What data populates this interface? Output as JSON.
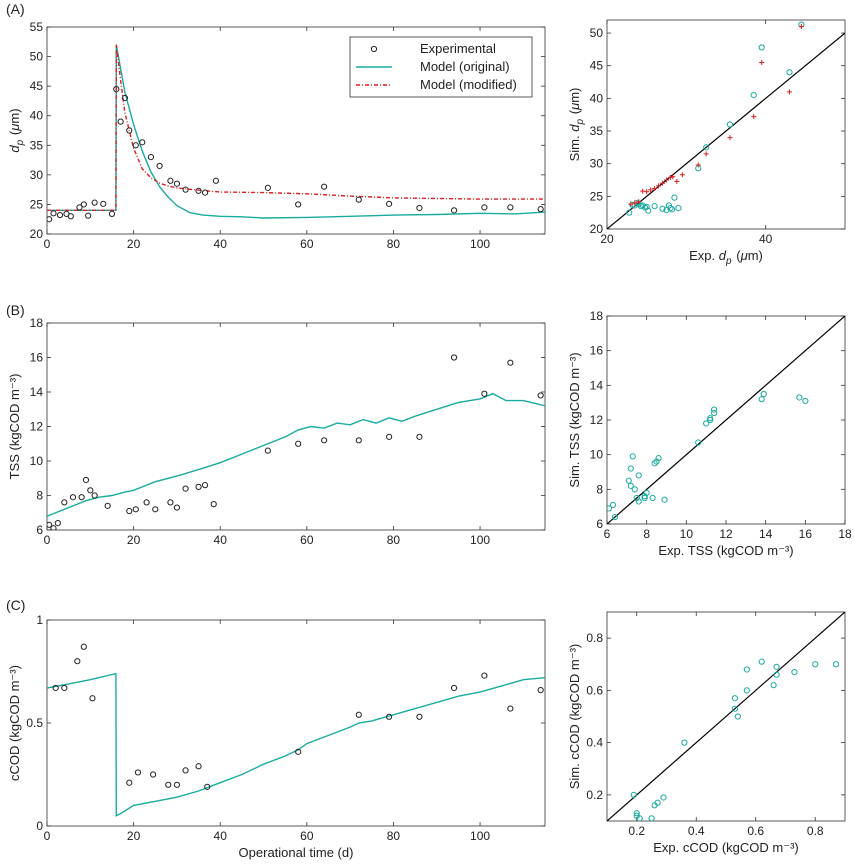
{
  "panel_labels": [
    "(A)",
    "(B)",
    "(C)"
  ],
  "colors": {
    "experimental": "#222222",
    "model_original": "#1aab9f",
    "model_modified": "#dd1f1f",
    "axis": "#333333",
    "diagonal": "#000000"
  },
  "chart_data": [
    {
      "id": "a-time",
      "type": "line",
      "panel": "(A)",
      "ylabel": "d_p (μm)",
      "xlabel": "",
      "xlim": [
        0,
        115
      ],
      "ylim": [
        20,
        55
      ],
      "xticks": [
        0,
        20,
        40,
        60,
        80,
        100
      ],
      "yticks": [
        20,
        25,
        30,
        35,
        40,
        45,
        50,
        55
      ],
      "legend": {
        "position": "top-right",
        "entries": [
          "Experimental",
          "Model (original)",
          "Model (modified)"
        ]
      },
      "series": [
        {
          "name": "Experimental",
          "kind": "scatter",
          "x": [
            0.5,
            1.5,
            3,
            4.5,
            5.5,
            7.5,
            8.5,
            9.5,
            11,
            13,
            15,
            16,
            17,
            18,
            19,
            20.5,
            22,
            24,
            26,
            28.5,
            30,
            32,
            35,
            36.5,
            39,
            51,
            58,
            64,
            72,
            79,
            86,
            94,
            101,
            107,
            114
          ],
          "y": [
            22.5,
            23.5,
            23.2,
            23.4,
            23,
            24.5,
            25,
            23.1,
            25.3,
            25.1,
            23.4,
            44.5,
            39,
            43,
            37.5,
            35,
            35.5,
            33,
            31.5,
            29,
            28.5,
            27.5,
            27.3,
            27,
            29,
            27.8,
            25,
            28,
            25.8,
            25.1,
            24.4,
            24,
            24.5,
            24.5,
            24.2
          ]
        },
        {
          "name": "Model (original)",
          "kind": "line",
          "x": [
            0,
            15.9,
            16,
            18,
            20,
            22,
            24,
            26,
            28,
            30,
            33,
            36,
            40,
            45,
            50,
            60,
            70,
            80,
            90,
            100,
            108,
            115
          ],
          "y": [
            24,
            24,
            52,
            44,
            38.5,
            34,
            30.5,
            28,
            26.2,
            24.8,
            23.6,
            23.2,
            23,
            22.9,
            22.7,
            22.8,
            23,
            23.2,
            23.3,
            23.5,
            23.4,
            23.7
          ]
        },
        {
          "name": "Model (modified)",
          "kind": "line",
          "x": [
            0,
            15.9,
            16,
            17,
            18,
            20,
            22,
            24,
            26,
            28,
            30,
            35,
            40,
            50,
            60,
            70,
            80,
            90,
            100,
            115
          ],
          "y": [
            24,
            24,
            52,
            46,
            40.5,
            34.5,
            31,
            29.5,
            28.6,
            28.1,
            27.8,
            27.4,
            27.1,
            27,
            26.8,
            26.4,
            26.1,
            26,
            25.9,
            25.9
          ]
        }
      ]
    },
    {
      "id": "a-parity",
      "type": "scatter",
      "panel": "(A)",
      "xlabel": "Exp. d_p (μm)",
      "ylabel": "Sim. d_p (μm)",
      "xlim": [
        20,
        50
      ],
      "ylim": [
        20,
        52
      ],
      "xticks": [
        20,
        40
      ],
      "yticks": [
        20,
        25,
        30,
        35,
        40,
        45,
        50
      ],
      "series": [
        {
          "name": "Model (original)",
          "kind": "scatter-circle",
          "x": [
            22.8,
            23.2,
            23.5,
            24,
            24.3,
            24.5,
            25,
            25.2,
            23.8,
            24.8,
            26,
            27,
            27.5,
            27.8,
            28,
            28.2,
            28.5,
            29,
            31.5,
            32.5,
            35.5,
            38.5,
            39.5,
            43,
            44.5
          ],
          "y": [
            22.5,
            23.7,
            23.6,
            23.8,
            23.5,
            23.6,
            23.4,
            22.8,
            24,
            23.3,
            23.5,
            23.1,
            22.9,
            23.6,
            23.2,
            23,
            24.8,
            23.2,
            29.3,
            32.5,
            36,
            40.5,
            47.8,
            44,
            51.3
          ]
        },
        {
          "name": "Model (modified)",
          "kind": "scatter-plus",
          "x": [
            23,
            23.5,
            24,
            24.5,
            25,
            25.5,
            26,
            26.5,
            27,
            27.5,
            28,
            28.3,
            28.8,
            29.5,
            31.5,
            32.5,
            35.5,
            38.5,
            39.5,
            43,
            44.5
          ],
          "y": [
            23.8,
            24,
            24.2,
            25.8,
            25.7,
            26,
            26.2,
            26.6,
            27,
            27.5,
            27.9,
            28,
            27.3,
            28.3,
            29.8,
            31.5,
            34,
            37.2,
            45.5,
            41,
            51
          ]
        }
      ]
    },
    {
      "id": "b-time",
      "type": "line",
      "panel": "(B)",
      "ylabel": "TSS (kgCOD m⁻³)",
      "xlabel": "",
      "xlim": [
        0,
        115
      ],
      "ylim": [
        6,
        18
      ],
      "xticks": [
        0,
        20,
        40,
        60,
        80,
        100
      ],
      "yticks": [
        6,
        8,
        10,
        12,
        14,
        16,
        18
      ],
      "series": [
        {
          "name": "Experimental",
          "kind": "scatter",
          "x": [
            0.5,
            1.5,
            2.5,
            4,
            6,
            8,
            9,
            10,
            11,
            14,
            19,
            20.5,
            23,
            25,
            28.5,
            30,
            32,
            35,
            36.5,
            38.5,
            51,
            58,
            64,
            72,
            79,
            86,
            94,
            101,
            107,
            114
          ],
          "y": [
            6.3,
            6.1,
            6.4,
            7.6,
            7.9,
            7.9,
            8.9,
            8.3,
            8,
            7.4,
            7.1,
            7.2,
            7.6,
            7.2,
            7.6,
            7.3,
            8.4,
            8.5,
            8.6,
            7.5,
            10.6,
            11,
            11.2,
            11.2,
            11.4,
            11.4,
            16,
            13.9,
            15.7,
            13.8
          ]
        },
        {
          "name": "Model (original)",
          "kind": "line",
          "x": [
            0,
            3,
            6,
            9,
            12,
            15,
            18,
            20,
            22,
            25,
            28,
            31,
            35,
            40,
            45,
            50,
            55,
            58,
            61,
            64,
            67,
            70,
            73,
            76,
            79,
            82,
            85,
            90,
            95,
            100,
            103,
            106,
            110,
            115
          ],
          "y": [
            6.8,
            7.1,
            7.4,
            7.7,
            7.9,
            8,
            8.2,
            8.3,
            8.5,
            8.8,
            9,
            9.2,
            9.5,
            9.9,
            10.4,
            10.9,
            11.4,
            11.8,
            12,
            11.9,
            12.2,
            12.1,
            12.4,
            12.2,
            12.5,
            12.3,
            12.6,
            13,
            13.4,
            13.6,
            13.9,
            13.5,
            13.5,
            13.2
          ]
        }
      ]
    },
    {
      "id": "b-parity",
      "type": "scatter",
      "panel": "(B)",
      "xlabel": "Exp. TSS (kgCOD m⁻³)",
      "ylabel": "Sim. TSS (kgCOD m⁻³)",
      "xlim": [
        6,
        18
      ],
      "ylim": [
        6,
        18
      ],
      "xticks": [
        6,
        8,
        10,
        12,
        14,
        16,
        18
      ],
      "yticks": [
        6,
        8,
        10,
        12,
        14,
        16,
        18
      ],
      "series": [
        {
          "name": "Model (original)",
          "kind": "scatter-circle",
          "x": [
            6.1,
            6.3,
            6.4,
            7.1,
            7.2,
            7.2,
            7.3,
            7.4,
            7.5,
            7.6,
            7.6,
            7.9,
            7.9,
            8,
            8.3,
            8.4,
            8.5,
            8.6,
            8.9,
            10.6,
            11,
            11.2,
            11.2,
            11.4,
            11.4,
            13.9,
            13.8,
            15.7,
            16
          ],
          "y": [
            6.9,
            7.1,
            6.4,
            8.5,
            9.2,
            8.2,
            9.9,
            8,
            7.5,
            7.3,
            8.8,
            7.6,
            7.5,
            7.8,
            7.5,
            9.5,
            9.6,
            9.8,
            7.4,
            10.7,
            11.8,
            12,
            12.1,
            12.4,
            12.6,
            13.5,
            13.2,
            13.3,
            13.1
          ]
        }
      ]
    },
    {
      "id": "c-time",
      "type": "line",
      "panel": "(C)",
      "ylabel": "cCOD (kgCOD m⁻³)",
      "xlabel": "Operational time (d)",
      "xlim": [
        0,
        115
      ],
      "ylim": [
        0,
        1
      ],
      "xticks": [
        0,
        20,
        40,
        60,
        80,
        100
      ],
      "yticks": [
        0,
        0.5,
        1
      ],
      "series": [
        {
          "name": "Experimental",
          "kind": "scatter",
          "x": [
            2,
            4,
            7,
            8.5,
            10.5,
            19,
            21,
            24.5,
            28,
            30,
            32,
            35,
            37,
            58,
            72,
            79,
            86,
            94,
            101,
            107,
            114
          ],
          "y": [
            0.67,
            0.67,
            0.8,
            0.87,
            0.62,
            0.21,
            0.26,
            0.25,
            0.2,
            0.2,
            0.27,
            0.29,
            0.19,
            0.36,
            0.54,
            0.53,
            0.53,
            0.67,
            0.73,
            0.57,
            0.66
          ]
        },
        {
          "name": "Model (original)",
          "kind": "line",
          "x": [
            0,
            5,
            10,
            15.9,
            16,
            17,
            20,
            25,
            30,
            35,
            40,
            45,
            50,
            55,
            58,
            60,
            65,
            70,
            72,
            75,
            80,
            85,
            90,
            95,
            100,
            105,
            110,
            115
          ],
          "y": [
            0.67,
            0.69,
            0.71,
            0.74,
            0.05,
            0.06,
            0.1,
            0.12,
            0.14,
            0.17,
            0.21,
            0.25,
            0.3,
            0.34,
            0.37,
            0.4,
            0.44,
            0.48,
            0.5,
            0.51,
            0.54,
            0.57,
            0.6,
            0.63,
            0.65,
            0.68,
            0.71,
            0.72
          ]
        }
      ]
    },
    {
      "id": "c-parity",
      "type": "scatter",
      "panel": "(C)",
      "xlabel": "Exp. cCOD (kgCOD m⁻³)",
      "ylabel": "Sim. cCOD (kgCOD m⁻³)",
      "xlim": [
        0.1,
        0.9
      ],
      "ylim": [
        0.1,
        0.9
      ],
      "xticks": [
        0.2,
        0.4,
        0.6,
        0.8
      ],
      "yticks": [
        0.2,
        0.4,
        0.6,
        0.8
      ],
      "series": [
        {
          "name": "Model (original)",
          "kind": "scatter-circle",
          "x": [
            0.19,
            0.2,
            0.2,
            0.21,
            0.25,
            0.26,
            0.27,
            0.29,
            0.36,
            0.53,
            0.53,
            0.54,
            0.57,
            0.57,
            0.62,
            0.66,
            0.67,
            0.67,
            0.73,
            0.8,
            0.87
          ],
          "y": [
            0.2,
            0.13,
            0.12,
            0.11,
            0.11,
            0.16,
            0.17,
            0.19,
            0.4,
            0.57,
            0.53,
            0.5,
            0.6,
            0.68,
            0.71,
            0.62,
            0.66,
            0.69,
            0.67,
            0.7,
            0.7
          ]
        }
      ]
    }
  ]
}
